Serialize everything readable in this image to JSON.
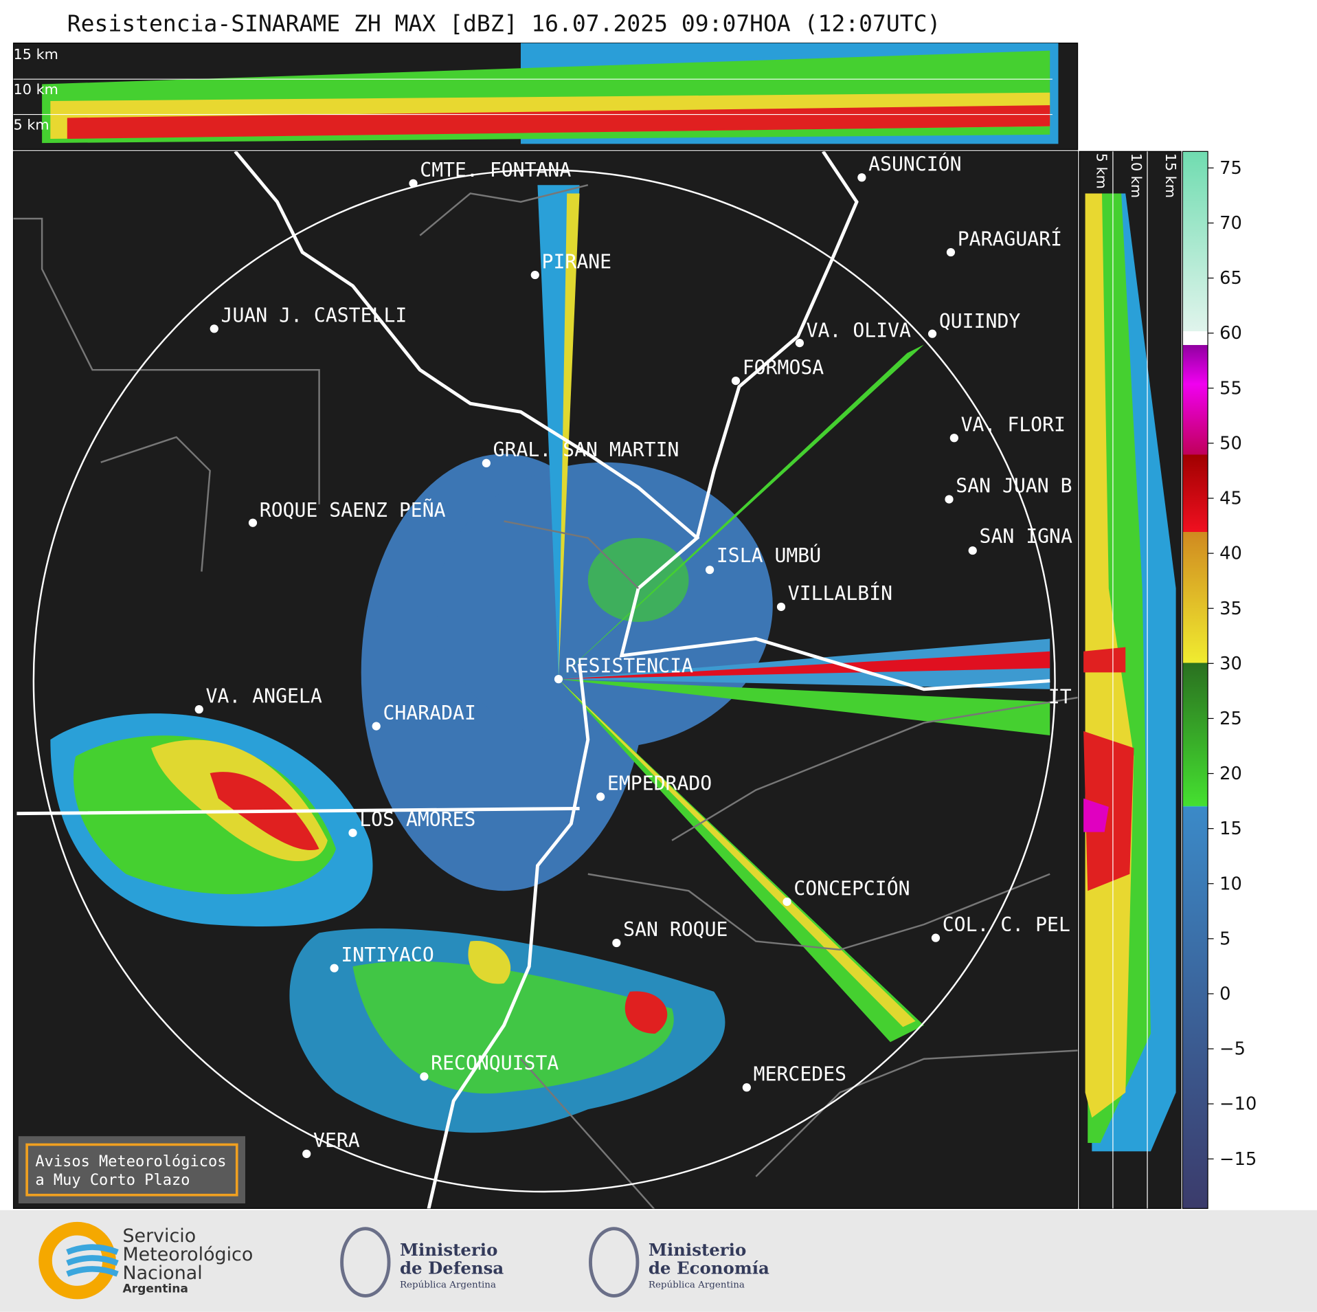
{
  "title": "Resistencia-SINARAME ZH MAX [dBZ] 16.07.2025 09:07HOA (12:07UTC)",
  "top_panel": {
    "height_labels": [
      "15 km",
      "10 km",
      "5 km"
    ]
  },
  "side_panel": {
    "height_labels": [
      "5 km",
      "10 km",
      "15 km"
    ]
  },
  "cities": [
    "CMTE. FONTANA",
    "PIRANE",
    "JUAN J. CASTELLI",
    "VA. OLIVA",
    "QUIINDY",
    "FORMOSA",
    "ASUNCIÓN",
    "PARAGUARÍ",
    "VA. FLORI",
    "SAN JUAN B",
    "SAN IGNA",
    "GRAL. SAN MARTIN",
    "ROQUE SAENZ PEÑA",
    "ISLA UMBÚ",
    "VILLALBÍN",
    "RESISTENCIA",
    "VA. ANGELA",
    "CHARADAI",
    "IT",
    "EMPEDRADO",
    "LOS AMORES",
    "CONCEPCIÓN",
    "COL. C. PEL",
    "SAN ROQUE",
    "INTIYACO",
    "RECONQUISTA",
    "MERCEDES",
    "VERA"
  ],
  "colorbar": {
    "lim": [
      -19.5,
      76.5
    ],
    "ticks": [
      {
        "value": -15,
        "label": "−15"
      },
      {
        "value": -10,
        "label": "−10"
      },
      {
        "value": -5,
        "label": "−5"
      },
      0,
      5,
      10,
      15,
      20,
      25,
      30,
      35,
      40,
      45,
      50,
      55,
      60,
      65,
      70,
      75
    ]
  },
  "notice": [
    "Avisos Meteorológicos",
    "a Muy Corto Plazo"
  ],
  "logos": {
    "smn": [
      "Servicio",
      "Meteorológico",
      "Nacional",
      "Argentina"
    ],
    "defensa": [
      "Ministerio",
      "de Defensa",
      "República Argentina"
    ],
    "economia": [
      "Ministerio",
      "de Economía",
      "República Argentina"
    ]
  }
}
